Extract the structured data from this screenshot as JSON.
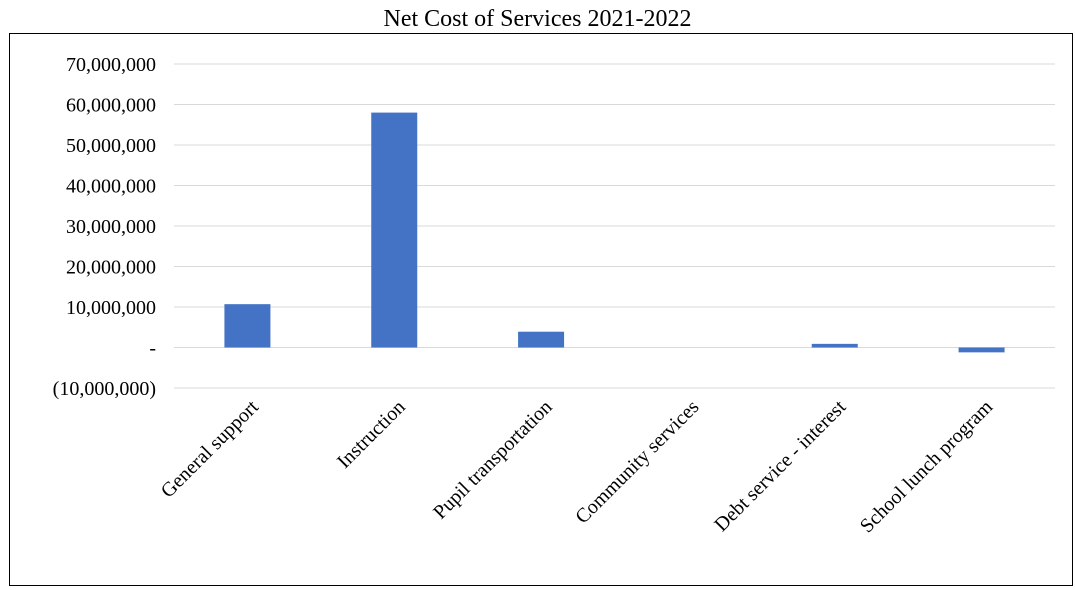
{
  "chart_data": {
    "type": "bar",
    "title": "Net Cost of Services 2021-2022",
    "categories": [
      "General support",
      "Instruction",
      "Pupil transportation",
      "Community services",
      "Debt service - interest",
      "School lunch program"
    ],
    "values": [
      10700000,
      58000000,
      3900000,
      0,
      900000,
      -1200000
    ],
    "ylim": [
      -10000000,
      70000000
    ],
    "yticks": [
      70000000,
      60000000,
      50000000,
      40000000,
      30000000,
      20000000,
      10000000,
      0,
      -10000000
    ],
    "ytick_labels": [
      "70,000,000",
      "60,000,000",
      "50,000,000",
      "40,000,000",
      "30,000,000",
      "20,000,000",
      "10,000,000",
      "-",
      "(10,000,000)"
    ],
    "grid": true,
    "legend": "none",
    "bar_color": "#4472C4",
    "grid_color": "#D9D9D9"
  }
}
